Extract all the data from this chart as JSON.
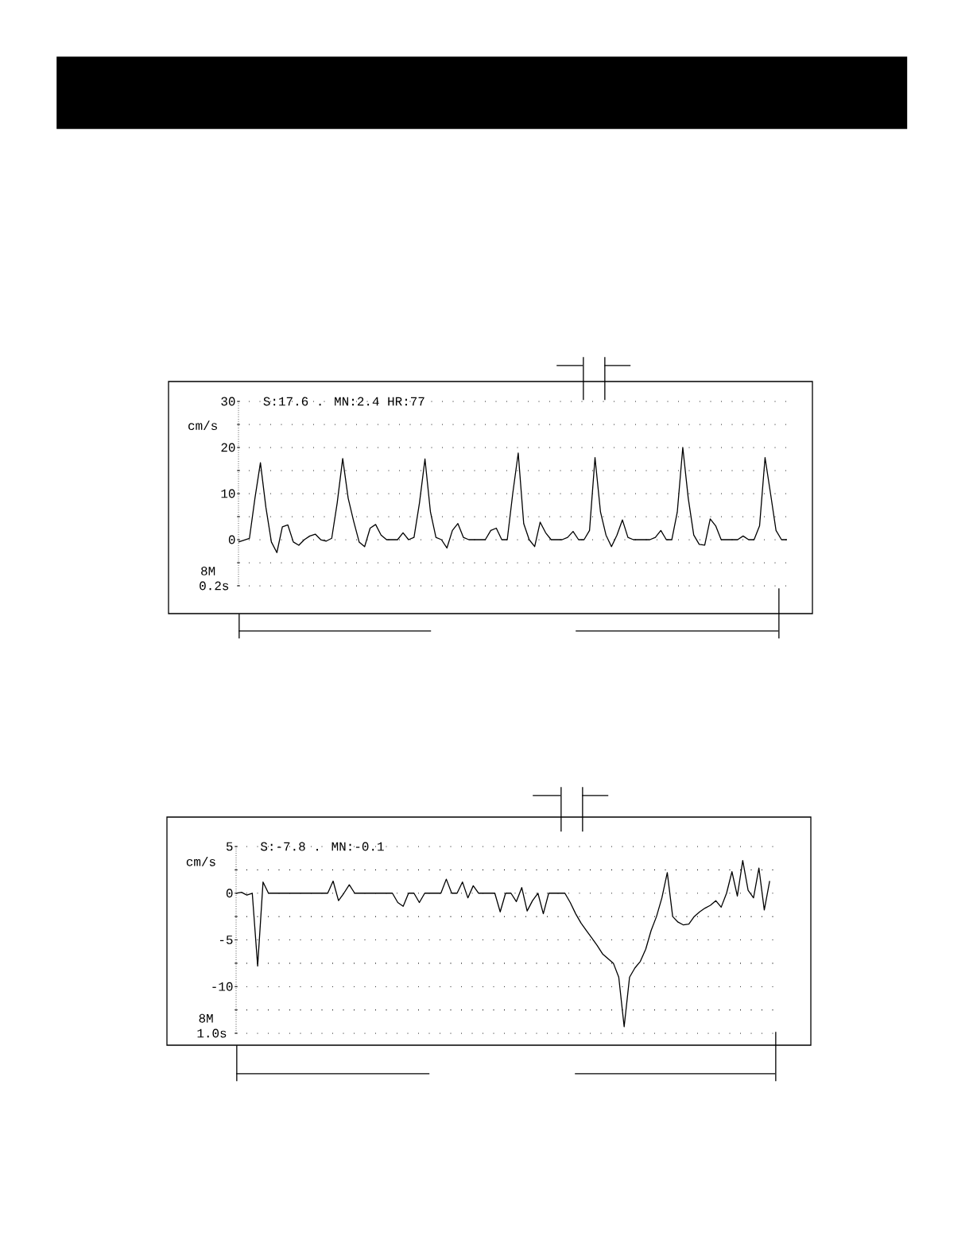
{
  "chart_data": [
    {
      "type": "line",
      "ylabel": "cm/s",
      "annotations": [
        "S:17.6 . MN:2.4  HR:77",
        "8M",
        "0.2s"
      ],
      "categories": [
        null,
        null,
        null,
        null,
        null,
        null,
        null,
        null,
        null,
        null,
        null,
        null,
        null,
        null,
        null,
        null,
        null,
        null,
        null,
        null,
        null,
        null,
        null,
        null,
        null,
        null,
        null,
        null,
        null,
        null,
        null,
        null,
        null,
        null,
        null,
        null,
        null,
        null,
        null,
        null,
        null,
        null,
        null,
        null,
        null,
        null,
        null,
        null,
        null,
        null,
        null,
        null,
        null,
        null,
        null,
        null,
        null,
        null,
        null,
        null,
        null,
        null,
        null,
        null,
        null,
        null,
        null,
        null,
        null,
        null,
        null,
        null,
        null,
        null,
        null,
        null,
        null,
        null,
        null,
        null,
        null,
        null,
        null,
        null,
        null,
        null,
        null,
        null,
        null,
        null,
        null,
        null,
        null,
        null,
        null,
        null,
        null,
        null,
        null,
        null,
        null
      ],
      "series": [
        {
          "color": "#000000",
          "values": [
            -0.5,
            -0.1,
            0.3,
            9,
            16.7,
            7,
            -0.5,
            -2.8,
            2.8,
            3.2,
            -0.5,
            -1.2,
            0,
            0.8,
            1.2,
            0,
            -0.3,
            0.3,
            8,
            17.6,
            9,
            4,
            -0.5,
            -1.5,
            2.5,
            3.3,
            1,
            0,
            0,
            0,
            1.5,
            0,
            0.5,
            8,
            17.5,
            6,
            0.5,
            0,
            -1.8,
            2,
            3.5,
            0.5,
            0,
            0,
            0,
            0,
            2,
            2.5,
            0,
            0,
            10,
            18.8,
            3.5,
            0,
            -1.5,
            3.8,
            1.5,
            0,
            0,
            0,
            0.5,
            1.8,
            0,
            0,
            2,
            17.8,
            6,
            1,
            -1.5,
            1,
            4.3,
            0.5,
            0,
            0,
            0,
            0,
            0.5,
            2,
            0,
            0,
            6,
            20,
            9,
            1,
            -1,
            -1.2,
            4.5,
            3,
            0,
            0,
            0,
            0,
            0.8,
            0,
            0,
            3,
            17.8,
            10,
            2,
            0,
            0
          ]
        }
      ],
      "ylim": [
        -10,
        30
      ],
      "yticks": [
        {
          "value": -10,
          "label": null
        },
        {
          "value": -5,
          "label": null
        },
        0,
        {
          "value": 5,
          "label": null
        },
        10,
        {
          "value": 15,
          "label": null
        },
        20,
        {
          "value": 25,
          "label": null
        },
        30
      ],
      "grid": "y",
      "tick_labels": "y",
      "marker": "none"
    },
    {
      "type": "line",
      "ylabel": "cm/s",
      "annotations": [
        "S:-7.8 . MN:-0.1",
        "8M",
        "1.0s"
      ],
      "categories": [
        null,
        null,
        null,
        null,
        null,
        null,
        null,
        null,
        null,
        null,
        null,
        null,
        null,
        null,
        null,
        null,
        null,
        null,
        null,
        null,
        null,
        null,
        null,
        null,
        null,
        null,
        null,
        null,
        null,
        null,
        null,
        null,
        null,
        null,
        null,
        null,
        null,
        null,
        null,
        null,
        null,
        null,
        null,
        null,
        null,
        null,
        null,
        null,
        null,
        null,
        null,
        null,
        null,
        null,
        null,
        null,
        null,
        null,
        null,
        null,
        null,
        null,
        null,
        null,
        null,
        null,
        null,
        null,
        null,
        null,
        null,
        null,
        null,
        null,
        null,
        null,
        null,
        null,
        null,
        null,
        null,
        null,
        null,
        null,
        null,
        null,
        null,
        null,
        null,
        null,
        null,
        null,
        null,
        null,
        null,
        null,
        null,
        null,
        null,
        null,
        null
      ],
      "series": [
        {
          "color": "#000000",
          "values": [
            0,
            0.1,
            -0.2,
            0,
            -7.8,
            1.2,
            0,
            0,
            0,
            0,
            0,
            0,
            0,
            0,
            0,
            0,
            0,
            0,
            1.3,
            -0.8,
            0,
            0.9,
            0,
            0,
            0,
            0,
            0,
            0,
            0,
            0,
            -1,
            -1.4,
            0,
            0,
            -1,
            0,
            0,
            0,
            0,
            1.5,
            0,
            0,
            1.2,
            -0.5,
            0.8,
            0,
            0,
            0,
            0,
            -2,
            0,
            0,
            -0.9,
            0.6,
            -1.9,
            -0.8,
            0,
            -2.2,
            0,
            0,
            0,
            0,
            -1,
            -2.2,
            -3.2,
            -4,
            -4.8,
            -5.6,
            -6.5,
            -7,
            -7.5,
            -9,
            -14.3,
            -9,
            -8,
            -7.3,
            -6,
            -4,
            -2.5,
            -0.5,
            2.2,
            -2.5,
            -3.1,
            -3.4,
            -3.3,
            -2.5,
            -2,
            -1.6,
            -1.3,
            -0.8,
            -1.5,
            0,
            2.3,
            -0.3,
            3.5,
            0.3,
            -0.5,
            2.7,
            -1.8,
            1.3,
            null
          ]
        }
      ],
      "ylim": [
        -15,
        5
      ],
      "yticks": [
        {
          "value": -15,
          "label": null
        },
        {
          "value": -12.5,
          "label": null
        },
        -10,
        {
          "value": -7.5,
          "label": null
        },
        -5,
        {
          "value": -2.5,
          "label": null
        },
        0,
        {
          "value": 2.5,
          "label": null
        },
        5
      ],
      "grid": "y",
      "tick_labels": "y",
      "marker": "none"
    }
  ]
}
